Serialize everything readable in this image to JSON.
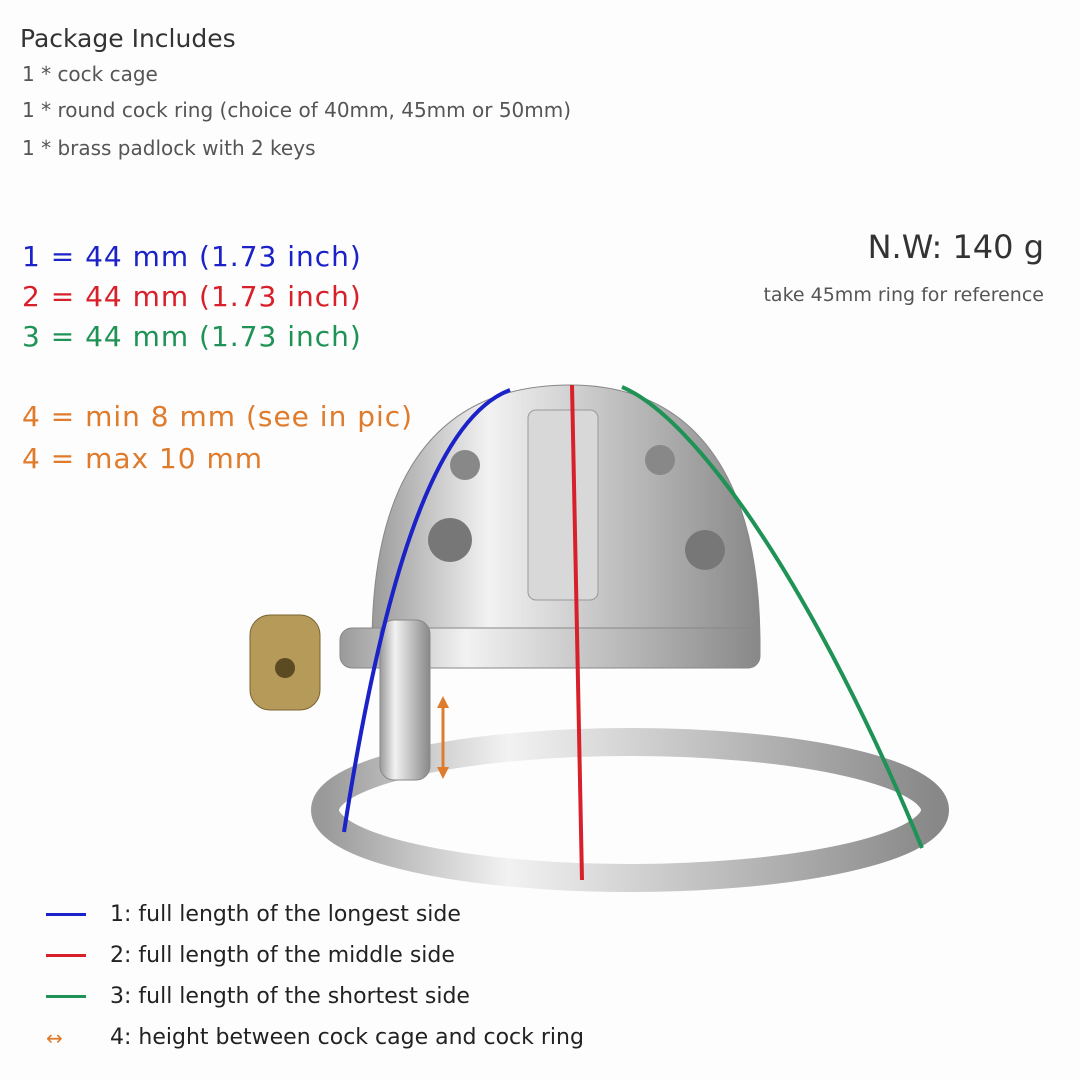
{
  "package": {
    "title": "Package Includes",
    "items": [
      "1 * cock cage",
      "1 * round cock ring (choice of 40mm, 45mm or 50mm)",
      "1 * brass padlock with 2 keys"
    ]
  },
  "measurements": [
    {
      "text": "1 = 44 mm  (1.73 inch)",
      "color": "#1a22c8"
    },
    {
      "text": "2 = 44 mm  (1.73 inch)",
      "color": "#d8202a"
    },
    {
      "text": "3 = 44 mm  (1.73 inch)",
      "color": "#1f9255"
    },
    {
      "text": "4 = min  8 mm (see in pic)",
      "color": "#e07b2c"
    },
    {
      "text": "4 = max 10 mm",
      "color": "#e07b2c"
    }
  ],
  "weight": {
    "label": "N.W: 140 g",
    "note": "take 45mm ring for reference"
  },
  "legend": [
    {
      "text": "1: full length of the longest side",
      "color": "#1a22c8",
      "icon": "line"
    },
    {
      "text": "2: full length of the middle side",
      "color": "#d8202a",
      "icon": "line"
    },
    {
      "text": "3: full length of the shortest side",
      "color": "#1f9255",
      "icon": "line"
    },
    {
      "text": "4: height between cock cage and cock ring",
      "color": "#e07b2c",
      "icon": "double-arrow"
    }
  ]
}
